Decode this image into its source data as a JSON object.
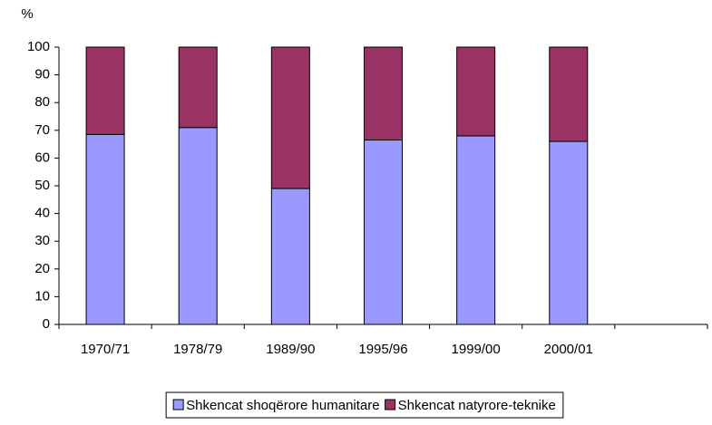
{
  "chart_data": {
    "type": "stacked_bar",
    "y_label": "%",
    "categories": [
      "1970/71",
      "1978/79",
      "1989/90",
      "1995/96",
      "1999/00",
      "2000/01",
      null
    ],
    "series": [
      {
        "name": "Shkencat shoqërore humanitare",
        "color": "#9999ff",
        "values": [
          68.5,
          71,
          49,
          66.5,
          68,
          66,
          null
        ]
      },
      {
        "name": "Shkencat natyrore-teknike",
        "color": "#993366",
        "values": [
          31.5,
          29,
          51,
          33.5,
          32,
          34,
          null
        ]
      }
    ],
    "ylim": [
      0,
      100
    ],
    "yticks": [
      0,
      10,
      20,
      30,
      40,
      50,
      60,
      70,
      80,
      90,
      100
    ],
    "legend": "bottom"
  }
}
